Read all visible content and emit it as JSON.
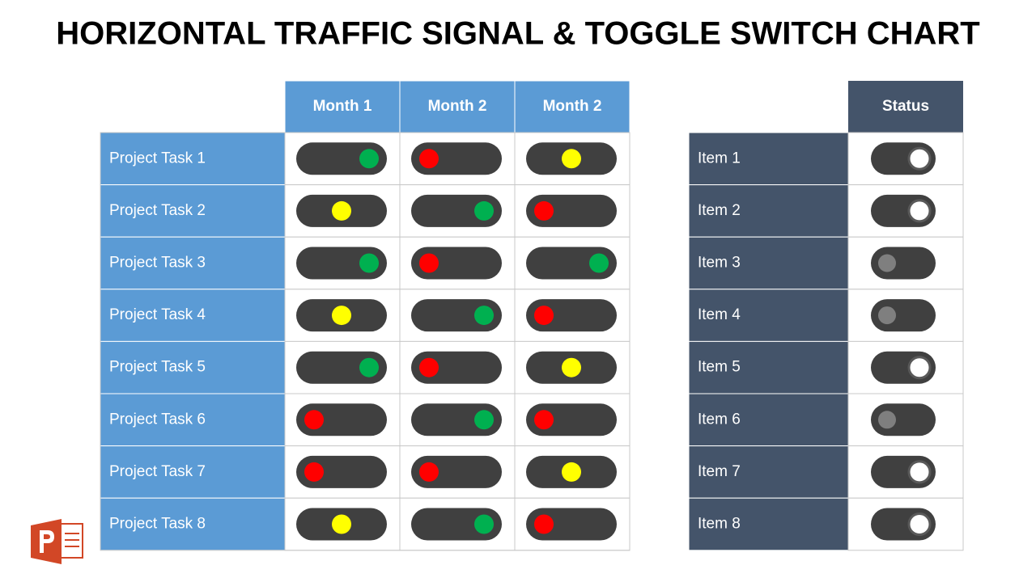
{
  "title": "HORIZONTAL TRAFFIC SIGNAL & TOGGLE SWITCH CHART",
  "signal_colors": {
    "red": "#ff0000",
    "yellow": "#ffff00",
    "green": "#00b050"
  },
  "table": {
    "columns": [
      "Month 1",
      "Month 2",
      "Month 2"
    ],
    "rows": [
      {
        "label": "Project Task 1",
        "signals": [
          "green",
          "red",
          "yellow"
        ]
      },
      {
        "label": "Project Task 2",
        "signals": [
          "yellow",
          "green",
          "red"
        ]
      },
      {
        "label": "Project Task 3",
        "signals": [
          "green",
          "red",
          "green"
        ]
      },
      {
        "label": "Project Task 4",
        "signals": [
          "yellow",
          "green",
          "red"
        ]
      },
      {
        "label": "Project Task 5",
        "signals": [
          "green",
          "red",
          "yellow"
        ]
      },
      {
        "label": "Project Task 6",
        "signals": [
          "red",
          "green",
          "red"
        ]
      },
      {
        "label": "Project Task 7",
        "signals": [
          "red",
          "red",
          "yellow"
        ]
      },
      {
        "label": "Project Task 8",
        "signals": [
          "yellow",
          "green",
          "red"
        ]
      }
    ]
  },
  "status_table": {
    "header": "Status",
    "rows": [
      {
        "label": "Item 1",
        "on": true
      },
      {
        "label": "Item 2",
        "on": true
      },
      {
        "label": "Item 3",
        "on": false
      },
      {
        "label": "Item 4",
        "on": false
      },
      {
        "label": "Item 5",
        "on": true
      },
      {
        "label": "Item 6",
        "on": false
      },
      {
        "label": "Item 7",
        "on": true
      },
      {
        "label": "Item 8",
        "on": true
      }
    ]
  }
}
